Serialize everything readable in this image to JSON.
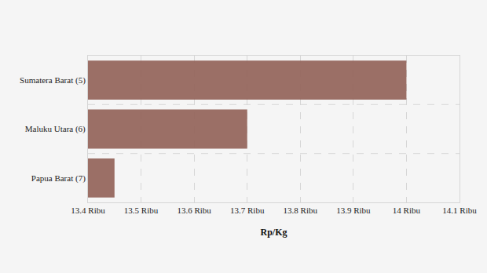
{
  "chart_data": {
    "type": "bar",
    "orientation": "horizontal",
    "categories": [
      "Sumatera Barat (5)",
      "Maluku Utara (6)",
      "Papua Barat (7)"
    ],
    "values": [
      14.0,
      13.7,
      13.45
    ],
    "color": "#96675e",
    "x_label": "Rp/Kg",
    "xlim": [
      13.4,
      14.1
    ],
    "xticks": [
      {
        "value": 13.4,
        "label": "13.4 Ribu"
      },
      {
        "value": 13.5,
        "label": "13.5 Ribu"
      },
      {
        "value": 13.6,
        "label": "13.6 Ribu"
      },
      {
        "value": 13.7,
        "label": "13.7 Ribu"
      },
      {
        "value": 13.8,
        "label": "13.8 Ribu"
      },
      {
        "value": 13.9,
        "label": "13.9 Ribu"
      },
      {
        "value": 14.0,
        "label": "14 Ribu"
      },
      {
        "value": 14.1,
        "label": "14.1 Ribu"
      }
    ],
    "grid": true
  }
}
